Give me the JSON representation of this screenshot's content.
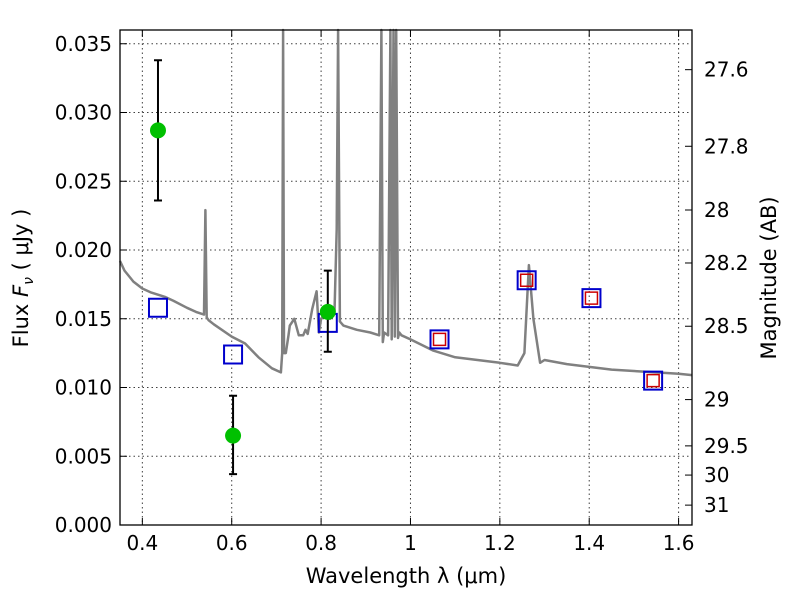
{
  "chart_data": {
    "type": "scatter",
    "title": "",
    "xlabel": "Wavelength  λ (μm)",
    "ylabel": "Flux  F_ν  ( μJy )",
    "ylabel_parts": {
      "pre": "Flux  ",
      "var": "F",
      "sub": "ν",
      "post": "  ( μJy )"
    },
    "y2label": "Magnitude (AB)",
    "xlim": [
      0.35,
      1.63
    ],
    "ylim": [
      0.0,
      0.036
    ],
    "grid": true,
    "xticks": [
      {
        "value": 0.4,
        "label": "0.4"
      },
      {
        "value": 0.6,
        "label": "0.6"
      },
      {
        "value": 0.8,
        "label": "0.8"
      },
      {
        "value": 1.0,
        "label": "1"
      },
      {
        "value": 1.2,
        "label": "1.2"
      },
      {
        "value": 1.4,
        "label": "1.4"
      },
      {
        "value": 1.6,
        "label": "1.6"
      }
    ],
    "yticks": [
      {
        "value": 0.0,
        "label": "0.000"
      },
      {
        "value": 0.005,
        "label": "0.005"
      },
      {
        "value": 0.01,
        "label": "0.010"
      },
      {
        "value": 0.015,
        "label": "0.015"
      },
      {
        "value": 0.02,
        "label": "0.020"
      },
      {
        "value": 0.025,
        "label": "0.025"
      },
      {
        "value": 0.03,
        "label": "0.030"
      },
      {
        "value": 0.035,
        "label": "0.035"
      }
    ],
    "y2ticks": [
      {
        "value": 27.6,
        "label": "27.6"
      },
      {
        "value": 27.8,
        "label": "27.8"
      },
      {
        "value": 28,
        "label": "28"
      },
      {
        "value": 28.2,
        "label": "28.2"
      },
      {
        "value": 28.5,
        "label": "28.5"
      },
      {
        "value": 29,
        "label": "29"
      },
      {
        "value": 29.5,
        "label": "29.5"
      },
      {
        "value": 30,
        "label": "30"
      },
      {
        "value": 31,
        "label": "31"
      }
    ],
    "series": [
      {
        "type": "line",
        "color": "#808080",
        "x": [
          0.35,
          0.36,
          0.38,
          0.4,
          0.42,
          0.45,
          0.47,
          0.5,
          0.52,
          0.538,
          0.541,
          0.544,
          0.548,
          0.56,
          0.6,
          0.63,
          0.66,
          0.69,
          0.71,
          0.713,
          0.715,
          0.717,
          0.721,
          0.727,
          0.73,
          0.74,
          0.75,
          0.76,
          0.765,
          0.77,
          0.78,
          0.79,
          0.795,
          0.8,
          0.805,
          0.81,
          0.815,
          0.82,
          0.83,
          0.835,
          0.838,
          0.842,
          0.85,
          0.88,
          0.91,
          0.93,
          0.935,
          0.938,
          0.941,
          0.95,
          0.955,
          0.958,
          0.962,
          0.965,
          0.968,
          0.972,
          0.975,
          0.98,
          1.0,
          1.05,
          1.1,
          1.15,
          1.2,
          1.24,
          1.255,
          1.265,
          1.275,
          1.29,
          1.3,
          1.35,
          1.4,
          1.45,
          1.5,
          1.55,
          1.6,
          1.63
        ],
        "y": [
          0.0192,
          0.0185,
          0.0177,
          0.0172,
          0.0169,
          0.0166,
          0.0163,
          0.0158,
          0.0155,
          0.0153,
          0.0229,
          0.0151,
          0.0149,
          0.0146,
          0.0137,
          0.0132,
          0.0122,
          0.0114,
          0.0111,
          0.0125,
          0.037,
          0.0125,
          0.0125,
          0.0138,
          0.0145,
          0.015,
          0.0138,
          0.0138,
          0.0142,
          0.0139,
          0.0157,
          0.017,
          0.014,
          0.015,
          0.0152,
          0.0152,
          0.0155,
          0.015,
          0.0155,
          0.0215,
          0.037,
          0.0148,
          0.0145,
          0.0142,
          0.014,
          0.0138,
          0.037,
          0.0133,
          0.014,
          0.0138,
          0.037,
          0.0135,
          0.037,
          0.0137,
          0.037,
          0.0136,
          0.014,
          0.0138,
          0.0135,
          0.0127,
          0.0122,
          0.012,
          0.0118,
          0.0116,
          0.0125,
          0.0189,
          0.015,
          0.0118,
          0.012,
          0.0117,
          0.0115,
          0.0113,
          0.0112,
          0.0111,
          0.011,
          0.0109
        ]
      },
      {
        "type": "errorbar",
        "color": "#00c000",
        "x": [
          0.435,
          0.603,
          0.815
        ],
        "y": [
          0.0287,
          0.0065,
          0.0155
        ],
        "yerr_low": [
          0.0236,
          0.0037,
          0.0126
        ],
        "yerr_high": [
          0.0338,
          0.0094,
          0.0185
        ]
      },
      {
        "type": "scatter",
        "marker": "open-square",
        "color": "#0000cc",
        "x": [
          0.435,
          0.603,
          0.815,
          1.065,
          1.26,
          1.405,
          1.543
        ],
        "y": [
          0.0158,
          0.0124,
          0.0147,
          0.0135,
          0.0178,
          0.0165,
          0.0105
        ]
      },
      {
        "type": "scatter",
        "marker": "open-square-small",
        "color": "#cc0000",
        "x": [
          1.065,
          1.26,
          1.405,
          1.543
        ],
        "y": [
          0.0135,
          0.0178,
          0.0165,
          0.0105
        ]
      }
    ]
  }
}
